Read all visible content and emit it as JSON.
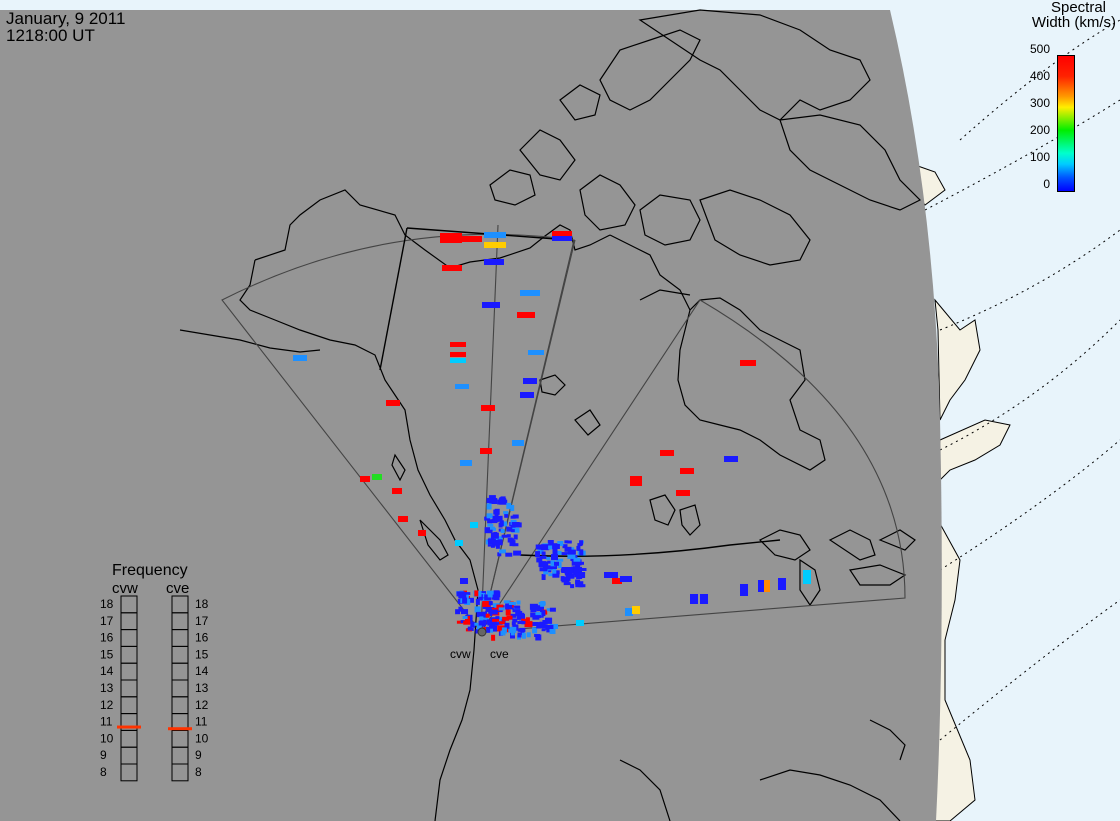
{
  "header": {
    "date": "January, 9 2011",
    "time": "1218:00 UT"
  },
  "colorbar": {
    "title_line1": "Spectral",
    "title_line2": "Width (km/s)",
    "ticks": [
      "500",
      "400",
      "300",
      "200",
      "100",
      "0"
    ],
    "colors": [
      "#ff0000",
      "#ff9900",
      "#ffff00",
      "#00ee00",
      "#00ffff",
      "#0000ff"
    ]
  },
  "radars": [
    {
      "name": "cvw"
    },
    {
      "name": "cve"
    }
  ],
  "frequency": {
    "title": "Frequency",
    "labels": [
      "18",
      "17",
      "16",
      "15",
      "14",
      "13",
      "12",
      "11",
      "10",
      "9",
      "8"
    ],
    "cvw_marker": 10.7,
    "cve_marker": 10.6,
    "marker_color": "#ff3300"
  },
  "colors": {
    "ocean": "#e8f4fb",
    "land_outside": "#f5f2e4",
    "overlay_gray": "#959595",
    "coast_line": "#000000"
  }
}
